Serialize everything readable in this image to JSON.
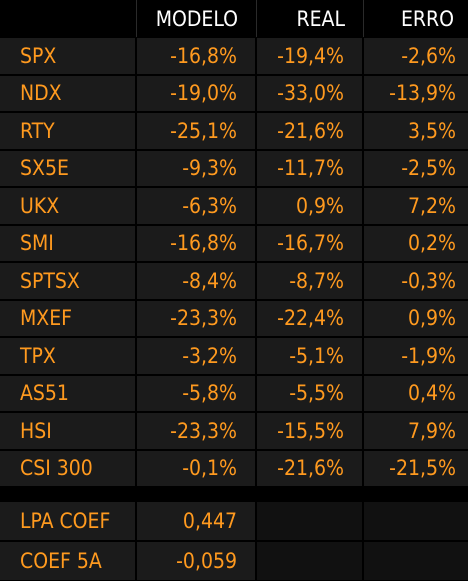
{
  "header": {
    "col_modelo": "MODELO",
    "col_real": "REAL",
    "col_erro": "ERRO"
  },
  "rows": [
    {
      "name": "SPX",
      "modelo": "-16,8%",
      "real": "-19,4%",
      "erro": "-2,6%"
    },
    {
      "name": "NDX",
      "modelo": "-19,0%",
      "real": "-33,0%",
      "erro": "-13,9%"
    },
    {
      "name": "RTY",
      "modelo": "-25,1%",
      "real": "-21,6%",
      "erro": "3,5%"
    },
    {
      "name": "SX5E",
      "modelo": "-9,3%",
      "real": "-11,7%",
      "erro": "-2,5%"
    },
    {
      "name": "UKX",
      "modelo": "-6,3%",
      "real": "0,9%",
      "erro": "7,2%"
    },
    {
      "name": "SMI",
      "modelo": "-16,8%",
      "real": "-16,7%",
      "erro": "0,2%"
    },
    {
      "name": "SPTSX",
      "modelo": "-8,4%",
      "real": "-8,7%",
      "erro": "-0,3%"
    },
    {
      "name": "MXEF",
      "modelo": "-23,3%",
      "real": "-22,4%",
      "erro": "0,9%"
    },
    {
      "name": "TPX",
      "modelo": "-3,2%",
      "real": "-5,1%",
      "erro": "-1,9%"
    },
    {
      "name": "AS51",
      "modelo": "-5,8%",
      "real": "-5,5%",
      "erro": "0,4%"
    },
    {
      "name": "HSI",
      "modelo": "-23,3%",
      "real": "-15,5%",
      "erro": "7,9%"
    },
    {
      "name": "CSI 300",
      "modelo": "-0,1%",
      "real": "-21,6%",
      "erro": "-21,5%"
    }
  ],
  "coefficients": [
    {
      "name": "LPA COEF",
      "value": "0,447"
    },
    {
      "name": "COEF 5A",
      "value": "-0,059"
    }
  ],
  "colors": {
    "background": "#000000",
    "cell": "#1b1b1b",
    "value_text": "#ff9a1f",
    "header_text": "#ffffff"
  }
}
